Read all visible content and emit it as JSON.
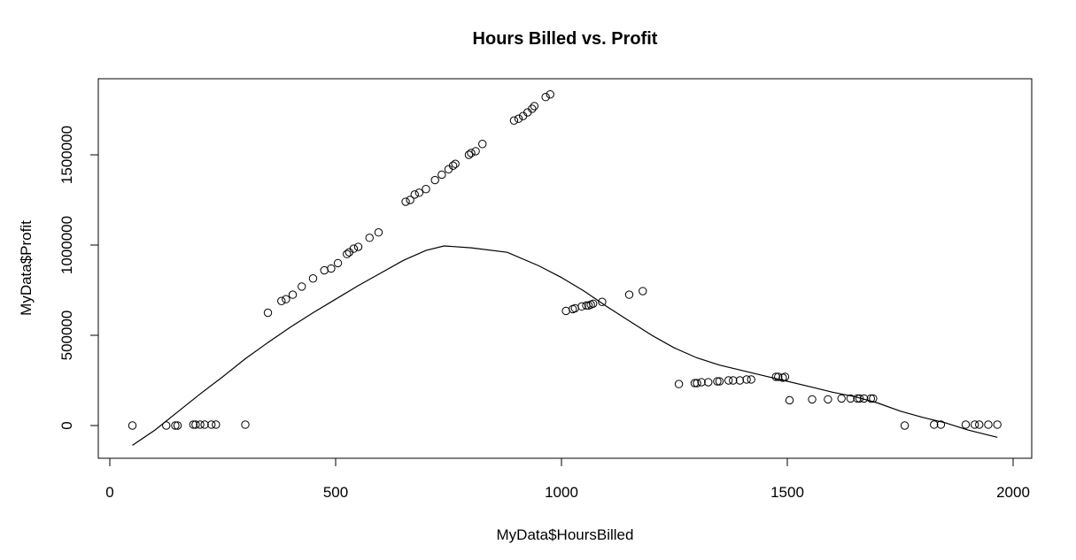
{
  "chart_data": {
    "type": "scatter",
    "title": "Hours Billed vs. Profit",
    "xlabel": "MyData$HoursBilled",
    "ylabel": "MyData$Profit",
    "xlim": [
      0,
      2000
    ],
    "ylim": [
      -150000,
      1900000
    ],
    "x_ticks": [
      0,
      500,
      1000,
      1500,
      2000
    ],
    "x_tick_labels": [
      "0",
      "500",
      "1000",
      "1500",
      "2000"
    ],
    "y_ticks": [
      0,
      500000,
      1000000,
      1500000
    ],
    "y_tick_labels": [
      "0",
      "500000",
      "1000000",
      "1500000"
    ],
    "grid": false,
    "series": [
      {
        "kind": "points",
        "x": [
          50,
          125,
          145,
          150,
          185,
          190,
          200,
          210,
          225,
          235,
          300,
          350,
          380,
          390,
          405,
          425,
          450,
          475,
          490,
          505,
          525,
          530,
          540,
          550,
          575,
          595,
          655,
          665,
          675,
          685,
          700,
          720,
          735,
          750,
          760,
          765,
          795,
          800,
          810,
          825,
          895,
          905,
          915,
          925,
          935,
          940,
          965,
          975,
          1010,
          1025,
          1030,
          1045,
          1055,
          1060,
          1065,
          1070,
          1090,
          1150,
          1180,
          1260,
          1295,
          1300,
          1310,
          1325,
          1345,
          1350,
          1370,
          1380,
          1395,
          1410,
          1420,
          1475,
          1480,
          1490,
          1495,
          1505,
          1555,
          1590,
          1620,
          1640,
          1655,
          1660,
          1670,
          1685,
          1690,
          1760,
          1825,
          1840,
          1895,
          1915,
          1925,
          1945,
          1965
        ],
        "y": [
          0,
          0,
          0,
          0,
          5000,
          5000,
          5000,
          5000,
          5000,
          5000,
          5000,
          625000,
          690000,
          700000,
          725000,
          770000,
          815000,
          860000,
          870000,
          900000,
          950000,
          960000,
          980000,
          990000,
          1040000,
          1070000,
          1240000,
          1250000,
          1280000,
          1290000,
          1310000,
          1360000,
          1390000,
          1420000,
          1440000,
          1450000,
          1500000,
          1510000,
          1520000,
          1560000,
          1690000,
          1700000,
          1715000,
          1735000,
          1755000,
          1770000,
          1820000,
          1835000,
          635000,
          645000,
          650000,
          660000,
          665000,
          665000,
          670000,
          675000,
          685000,
          725000,
          745000,
          230000,
          235000,
          235000,
          240000,
          240000,
          245000,
          245000,
          250000,
          250000,
          250000,
          255000,
          255000,
          270000,
          270000,
          265000,
          270000,
          140000,
          145000,
          145000,
          150000,
          150000,
          150000,
          150000,
          150000,
          150000,
          150000,
          0,
          5000,
          5000,
          5000,
          5000,
          5000,
          5000,
          5000
        ]
      },
      {
        "kind": "line",
        "x": [
          50,
          100,
          150,
          200,
          250,
          300,
          350,
          400,
          450,
          500,
          550,
          600,
          650,
          700,
          740,
          800,
          880,
          950,
          1000,
          1050,
          1100,
          1150,
          1200,
          1250,
          1300,
          1350,
          1400,
          1450,
          1500,
          1550,
          1600,
          1650,
          1700,
          1750,
          1800,
          1850,
          1900,
          1965
        ],
        "y": [
          -110000,
          -25000,
          75000,
          175000,
          270000,
          370000,
          460000,
          545000,
          625000,
          700000,
          775000,
          845000,
          915000,
          970000,
          995000,
          985000,
          960000,
          885000,
          820000,
          745000,
          660000,
          580000,
          500000,
          430000,
          375000,
          335000,
          305000,
          275000,
          245000,
          215000,
          185000,
          160000,
          125000,
          80000,
          45000,
          15000,
          -25000,
          -65000
        ]
      }
    ]
  }
}
